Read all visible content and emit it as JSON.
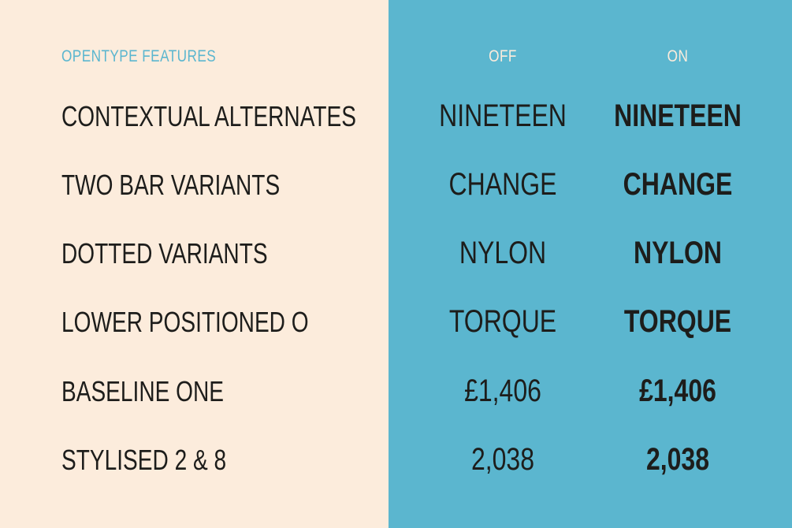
{
  "header": {
    "title": "OpenType Features",
    "off_label": "Off",
    "on_label": "On"
  },
  "colors": {
    "left_background": "#fcecdc",
    "right_background": "#5bb6cf",
    "text": "#1d1d1b"
  },
  "rows": [
    {
      "feature": "Contextual Alternates",
      "off": "NINETEEN",
      "on": "NINETEEN"
    },
    {
      "feature": "Two Bar Variants",
      "off": "CHANGE",
      "on": "CHANGE"
    },
    {
      "feature": "Dotted Variants",
      "off": "NYLON",
      "on": "NYLON"
    },
    {
      "feature": "Lower Positioned o",
      "off": "TORQUE",
      "on": "TORQUE"
    },
    {
      "feature": "Baseline One",
      "off": "£1,406",
      "on": "£1,406"
    },
    {
      "feature": "Stylised 2 & 8",
      "off": "2,038",
      "on": "2,038"
    }
  ]
}
